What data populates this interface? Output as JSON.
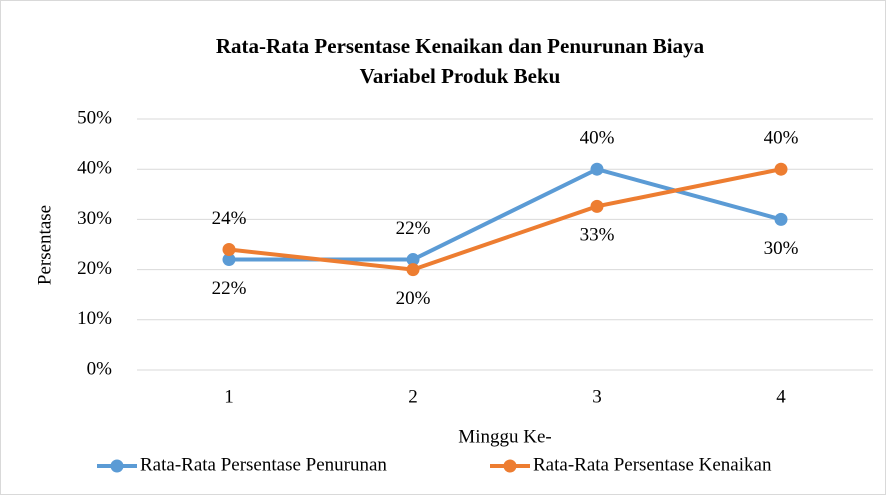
{
  "chart_data": {
    "type": "line",
    "title": [
      "Rata-Rata Persentase Kenaikan dan Penurunan Biaya",
      "Variabel Produk Beku"
    ],
    "x_label": "Minggu Ke-",
    "y_label": "Persentase",
    "categories": [
      "1",
      "2",
      "3",
      "4"
    ],
    "series": [
      {
        "name": "Rata-Rata Persentase Penurunan",
        "color": "#5b9bd5",
        "values": [
          22,
          22,
          40,
          30
        ],
        "value_labels": [
          "22%",
          "22%",
          "40%",
          "30%"
        ]
      },
      {
        "name": "Rata-Rata Persentase Kenaikan",
        "color": "#ed7d31",
        "values": [
          24,
          20,
          32.6,
          40
        ],
        "value_labels": [
          "24%",
          "20%",
          "33%",
          "40%"
        ]
      }
    ],
    "ylim": [
      0,
      50
    ],
    "yticks": [
      {
        "value": 0,
        "label": "0%"
      },
      {
        "value": 10,
        "label": "10%"
      },
      {
        "value": 20,
        "label": "20%"
      },
      {
        "value": 30,
        "label": "30%"
      },
      {
        "value": 40,
        "label": "40%"
      },
      {
        "value": 50,
        "label": "50%"
      }
    ],
    "grid": true,
    "legend": "bottom"
  }
}
